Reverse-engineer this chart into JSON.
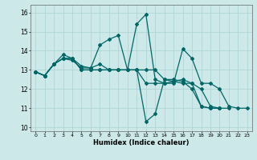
{
  "xlabel": "Humidex (Indice chaleur)",
  "bg_color": "#cce8e8",
  "grid_color": "#b0d4d4",
  "line_color": "#006666",
  "xlim": [
    -0.5,
    23.5
  ],
  "ylim": [
    9.8,
    16.4
  ],
  "yticks": [
    10,
    11,
    12,
    13,
    14,
    15,
    16
  ],
  "xticks": [
    0,
    1,
    2,
    3,
    4,
    5,
    6,
    7,
    8,
    9,
    10,
    11,
    12,
    13,
    14,
    15,
    16,
    17,
    18,
    19,
    20,
    21,
    22,
    23
  ],
  "series": [
    {
      "x": [
        0,
        1,
        2,
        3,
        4,
        5,
        6,
        7,
        8,
        9,
        10,
        11,
        12,
        13,
        14,
        15,
        16,
        17,
        18,
        19,
        20,
        21,
        22,
        23
      ],
      "y": [
        12.9,
        12.7,
        13.3,
        13.6,
        13.5,
        13.1,
        13.1,
        13.3,
        13.0,
        13.0,
        13.0,
        15.4,
        15.9,
        12.5,
        12.3,
        12.3,
        14.1,
        13.6,
        12.3,
        12.3,
        12.0,
        11.1,
        11.0,
        11.0
      ]
    },
    {
      "x": [
        0,
        1,
        2,
        3,
        4,
        5,
        6,
        7,
        8,
        9,
        10,
        11,
        12,
        13,
        14,
        15,
        16,
        17,
        18,
        19,
        20
      ],
      "y": [
        12.9,
        12.7,
        13.3,
        13.8,
        13.6,
        13.2,
        13.1,
        14.3,
        14.6,
        14.8,
        13.0,
        13.0,
        10.3,
        10.7,
        12.5,
        12.5,
        12.4,
        12.0,
        11.1,
        11.0,
        11.0
      ]
    },
    {
      "x": [
        0,
        1,
        2,
        3,
        4,
        5,
        6,
        7,
        8,
        9,
        10,
        11,
        12,
        13,
        14,
        15,
        16,
        17,
        18,
        19,
        20,
        21
      ],
      "y": [
        12.9,
        12.7,
        13.3,
        13.6,
        13.6,
        13.0,
        13.0,
        13.0,
        13.0,
        13.0,
        13.0,
        13.0,
        13.0,
        13.0,
        12.5,
        12.4,
        12.3,
        12.3,
        12.0,
        11.1,
        11.0,
        11.0
      ]
    },
    {
      "x": [
        0,
        1,
        2,
        3,
        4,
        5,
        6,
        7,
        8,
        9,
        10,
        11,
        12,
        13,
        14,
        15,
        16,
        17,
        18,
        19,
        20
      ],
      "y": [
        12.9,
        12.7,
        13.3,
        13.6,
        13.6,
        13.0,
        13.0,
        13.0,
        13.0,
        13.0,
        13.0,
        13.0,
        12.3,
        12.3,
        12.3,
        12.4,
        12.5,
        12.3,
        11.1,
        11.0,
        11.0
      ]
    }
  ]
}
